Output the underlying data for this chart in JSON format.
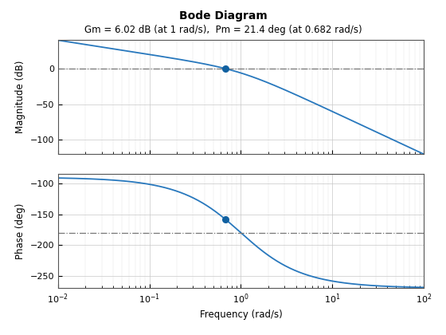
{
  "title": "Bode Diagram",
  "subtitle": "Gm = 6.02 dB (at 1 rad/s),  Pm = 21.4 deg (at 0.682 rad/s)",
  "freq_min": 0.01,
  "freq_max": 100,
  "mag_ylim": [
    -120,
    40
  ],
  "mag_yticks": [
    -100,
    -50,
    0
  ],
  "phase_ylim": [
    -270,
    -85
  ],
  "phase_yticks": [
    -250,
    -200,
    -150,
    -100
  ],
  "mag_ylabel": "Magnitude (dB)",
  "phase_ylabel": "Phase (deg)",
  "xlabel": "Frequency (rad/s)",
  "line_color": "#2878bd",
  "dot_color": "#1060a0",
  "dashdot_color": "#777777",
  "gm_freq": 1.0,
  "pm_freq": 0.682,
  "phase_line": -180,
  "bg_color": "#f0f0f0"
}
